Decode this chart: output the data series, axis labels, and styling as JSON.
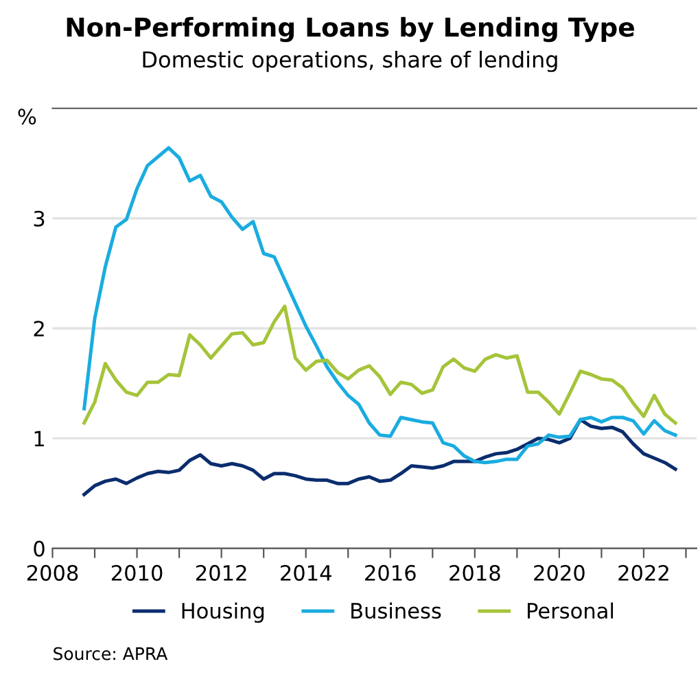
{
  "chart_data": {
    "type": "line",
    "title": "Non-Performing Loans by Lending Type",
    "subtitle": "Domestic operations, share of lending",
    "ylabel": "%",
    "annotations": [
      "Source: APRA"
    ],
    "x": [
      2008.75,
      2009,
      2009.25,
      2009.5,
      2009.75,
      2010,
      2010.25,
      2010.5,
      2010.75,
      2011,
      2011.25,
      2011.5,
      2011.75,
      2012,
      2012.25,
      2012.5,
      2012.75,
      2013,
      2013.25,
      2013.5,
      2013.75,
      2014,
      2014.25,
      2014.5,
      2014.75,
      2015,
      2015.25,
      2015.5,
      2015.75,
      2016,
      2016.25,
      2016.5,
      2016.75,
      2017,
      2017.25,
      2017.5,
      2017.75,
      2018,
      2018.25,
      2018.5,
      2018.75,
      2019,
      2019.25,
      2019.5,
      2019.75,
      2020,
      2020.25,
      2020.5,
      2020.75,
      2021,
      2021.25,
      2021.5,
      2021.75,
      2022,
      2022.25,
      2022.5,
      2022.75
    ],
    "series": [
      {
        "name": "Housing",
        "color": "#0b2d6e",
        "values": [
          0.49,
          0.57,
          0.61,
          0.63,
          0.59,
          0.64,
          0.68,
          0.7,
          0.69,
          0.71,
          0.8,
          0.85,
          0.77,
          0.75,
          0.77,
          0.75,
          0.71,
          0.63,
          0.68,
          0.68,
          0.66,
          0.63,
          0.62,
          0.62,
          0.59,
          0.59,
          0.63,
          0.65,
          0.61,
          0.62,
          0.68,
          0.75,
          0.74,
          0.73,
          0.75,
          0.79,
          0.79,
          0.79,
          0.83,
          0.86,
          0.87,
          0.9,
          0.95,
          1.0,
          0.99,
          0.96,
          1.0,
          1.17,
          1.11,
          1.09,
          1.1,
          1.06,
          0.95,
          0.86,
          0.82,
          0.78,
          0.72
        ]
      },
      {
        "name": "Business",
        "color": "#1aace0",
        "values": [
          1.27,
          2.09,
          2.56,
          2.92,
          2.99,
          3.27,
          3.48,
          3.56,
          3.64,
          3.55,
          3.34,
          3.39,
          3.2,
          3.15,
          3.01,
          2.9,
          2.97,
          2.68,
          2.65,
          2.44,
          2.23,
          2.02,
          1.84,
          1.65,
          1.51,
          1.39,
          1.31,
          1.14,
          1.03,
          1.02,
          1.19,
          1.17,
          1.15,
          1.14,
          0.96,
          0.93,
          0.84,
          0.79,
          0.78,
          0.79,
          0.81,
          0.81,
          0.93,
          0.95,
          1.03,
          1.01,
          1.02,
          1.17,
          1.19,
          1.15,
          1.19,
          1.19,
          1.16,
          1.04,
          1.16,
          1.07,
          1.03
        ]
      },
      {
        "name": "Personal",
        "color": "#a5c43a",
        "values": [
          1.14,
          1.33,
          1.68,
          1.53,
          1.42,
          1.39,
          1.51,
          1.51,
          1.58,
          1.57,
          1.94,
          1.85,
          1.73,
          1.84,
          1.95,
          1.96,
          1.85,
          1.87,
          2.06,
          2.2,
          1.73,
          1.62,
          1.7,
          1.71,
          1.6,
          1.54,
          1.62,
          1.66,
          1.56,
          1.4,
          1.51,
          1.49,
          1.41,
          1.44,
          1.65,
          1.72,
          1.64,
          1.61,
          1.72,
          1.76,
          1.73,
          1.75,
          1.42,
          1.42,
          1.33,
          1.22,
          1.41,
          1.61,
          1.58,
          1.54,
          1.53,
          1.46,
          1.32,
          1.2,
          1.39,
          1.22,
          1.14
        ]
      }
    ],
    "xlim": [
      2008,
      2023.25
    ],
    "xticks": [
      2008,
      {
        "value": 2009,
        "label": null
      },
      2010,
      {
        "value": 2011,
        "label": null
      },
      2012,
      {
        "value": 2013,
        "label": null
      },
      2014,
      {
        "value": 2015,
        "label": null
      },
      2016,
      {
        "value": 2017,
        "label": null
      },
      2018,
      {
        "value": 2019,
        "label": null
      },
      2020,
      {
        "value": 2021,
        "label": null
      },
      2022,
      {
        "value": 2023,
        "label": null
      }
    ],
    "ylim": [
      0,
      4
    ],
    "yticks": [
      0,
      1,
      2,
      3
    ],
    "grid": "y",
    "legend": "bottom",
    "line_style": "solid",
    "marker": "none"
  }
}
